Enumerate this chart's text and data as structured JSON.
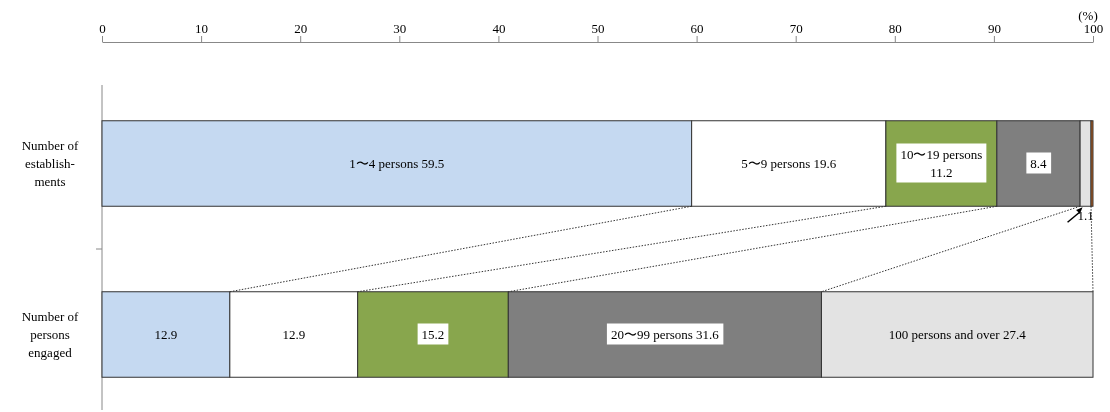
{
  "chart_data": {
    "type": "bar",
    "orientation": "horizontal",
    "stacked": true,
    "xlabel": "(%)",
    "categories": [
      "Number of\nestablish-\nments",
      "Number of\npersons\nengaged"
    ],
    "xlim": [
      0,
      100
    ],
    "xticks": [
      0,
      10,
      20,
      30,
      40,
      50,
      60,
      70,
      80,
      90,
      100
    ],
    "grid": false,
    "series": [
      {
        "color": "#c5d9f1",
        "values": [
          59.5,
          12.9
        ],
        "value_labels": [
          "1〜4 persons 59.5",
          "12.9"
        ]
      },
      {
        "color": "#ffffff",
        "values": [
          19.6,
          12.9
        ],
        "value_labels": [
          "5〜9 persons 19.6",
          "12.9"
        ]
      },
      {
        "color": "#88a64d",
        "values": [
          11.2,
          15.2
        ],
        "value_labels": [
          "10〜19 persons\n11.2",
          "15.2"
        ]
      },
      {
        "color": "#7f7f7f",
        "values": [
          8.4,
          31.6
        ],
        "value_labels": [
          "8.4",
          "20〜99 persons 31.6"
        ]
      },
      {
        "color": "#e3e3e3",
        "values": [
          1.1,
          27.4
        ],
        "value_labels": [
          "1.1",
          "100 persons and over 27.4"
        ]
      },
      {
        "color": "#c0601a",
        "values": [
          0.2,
          null
        ],
        "value_labels": [
          null,
          null
        ]
      }
    ]
  }
}
